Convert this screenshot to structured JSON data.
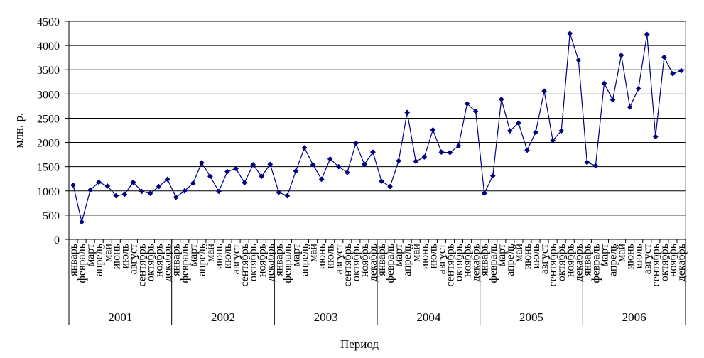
{
  "chart_data": {
    "type": "line",
    "ylabel": "млн. р.",
    "xlabel": "Период",
    "ylim": [
      0,
      4500
    ],
    "yticks": [
      0,
      500,
      1000,
      1500,
      2000,
      2500,
      3000,
      3500,
      4000,
      4500
    ],
    "ytick_labels": [
      "0",
      "500",
      "1000",
      "1500",
      "2000",
      "2500",
      "3000",
      "3500",
      "4000",
      "4500"
    ],
    "grid": true,
    "line_color": "#000080",
    "months": [
      "январь",
      "февраль",
      "март",
      "апрель",
      "май",
      "июнь",
      "июль",
      "август",
      "сентябрь",
      "октябрь",
      "ноябрь",
      "декабрь"
    ],
    "years": [
      "2001",
      "2002",
      "2003",
      "2004",
      "2005",
      "2006"
    ],
    "values": [
      1120,
      360,
      1020,
      1180,
      1100,
      900,
      930,
      1180,
      990,
      950,
      1090,
      1240,
      870,
      1000,
      1160,
      1580,
      1300,
      990,
      1400,
      1460,
      1170,
      1540,
      1300,
      1550,
      970,
      900,
      1410,
      1890,
      1540,
      1240,
      1660,
      1500,
      1380,
      1980,
      1550,
      1800,
      1200,
      1090,
      1620,
      2620,
      1610,
      1700,
      2260,
      1800,
      1790,
      1930,
      2800,
      2640,
      950,
      1310,
      2890,
      2240,
      2400,
      1840,
      2210,
      3060,
      2040,
      2240,
      4250,
      3700,
      1590,
      1520,
      3220,
      2880,
      3800,
      2730,
      3110,
      4230,
      2120,
      3760,
      3420,
      3480
    ]
  }
}
